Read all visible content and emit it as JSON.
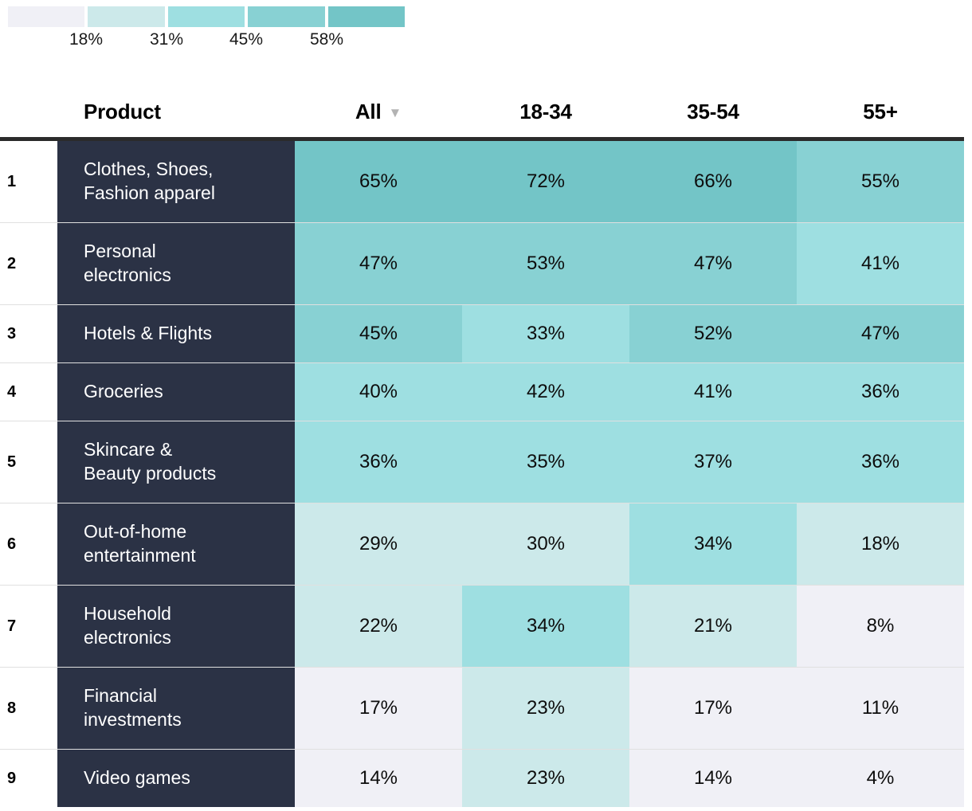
{
  "legend": {
    "labels": [
      "18%",
      "31%",
      "45%",
      "58%"
    ]
  },
  "heatmap": {
    "thresholds": [
      18,
      31,
      45,
      58
    ],
    "colors": [
      "#f0f0f6",
      "#cce9ea",
      "#9edfe1",
      "#88d1d3",
      "#73c5c7"
    ],
    "product_column_bg": "#2b3245",
    "header_border_color": "#2b2b2b",
    "sort_icon_color": "#b3b3b3"
  },
  "header": {
    "product": "Product",
    "columns": [
      "All",
      "18-34",
      "35-54",
      "55+"
    ],
    "sort_indicator": "▼"
  },
  "table": {
    "rows": [
      {
        "rank": "1",
        "product": "Clothes, Shoes,\nFashion apparel",
        "values": [
          "65%",
          "72%",
          "66%",
          "55%"
        ]
      },
      {
        "rank": "2",
        "product": "Personal\nelectronics",
        "values": [
          "47%",
          "53%",
          "47%",
          "41%"
        ]
      },
      {
        "rank": "3",
        "product": "Hotels & Flights",
        "values": [
          "45%",
          "33%",
          "52%",
          "47%"
        ]
      },
      {
        "rank": "4",
        "product": "Groceries",
        "values": [
          "40%",
          "42%",
          "41%",
          "36%"
        ]
      },
      {
        "rank": "5",
        "product": "Skincare &\nBeauty products",
        "values": [
          "36%",
          "35%",
          "37%",
          "36%"
        ]
      },
      {
        "rank": "6",
        "product": "Out-of-home\nentertainment",
        "values": [
          "29%",
          "30%",
          "34%",
          "18%"
        ]
      },
      {
        "rank": "7",
        "product": "Household\nelectronics",
        "values": [
          "22%",
          "34%",
          "21%",
          "8%"
        ]
      },
      {
        "rank": "8",
        "product": "Financial\ninvestments",
        "values": [
          "17%",
          "23%",
          "17%",
          "11%"
        ]
      },
      {
        "rank": "9",
        "product": "Video games",
        "values": [
          "14%",
          "23%",
          "14%",
          "4%"
        ]
      }
    ]
  },
  "chart_data": {
    "type": "heatmap",
    "title": "",
    "columns": [
      "All",
      "18-34",
      "35-54",
      "55+"
    ],
    "row_labels": [
      "Clothes, Shoes, Fashion apparel",
      "Personal electronics",
      "Hotels & Flights",
      "Groceries",
      "Skincare & Beauty products",
      "Out-of-home entertainment",
      "Household electronics",
      "Financial investments",
      "Video games"
    ],
    "values": [
      [
        65,
        72,
        66,
        55
      ],
      [
        47,
        53,
        47,
        41
      ],
      [
        45,
        33,
        52,
        47
      ],
      [
        40,
        42,
        41,
        36
      ],
      [
        36,
        35,
        37,
        36
      ],
      [
        29,
        30,
        34,
        18
      ],
      [
        22,
        34,
        21,
        8
      ],
      [
        17,
        23,
        17,
        11
      ],
      [
        14,
        23,
        14,
        4
      ]
    ],
    "unit": "%",
    "color_scale_thresholds": [
      18,
      31,
      45,
      58
    ],
    "legend_position": "top-left",
    "sorted_by": "All descending"
  }
}
